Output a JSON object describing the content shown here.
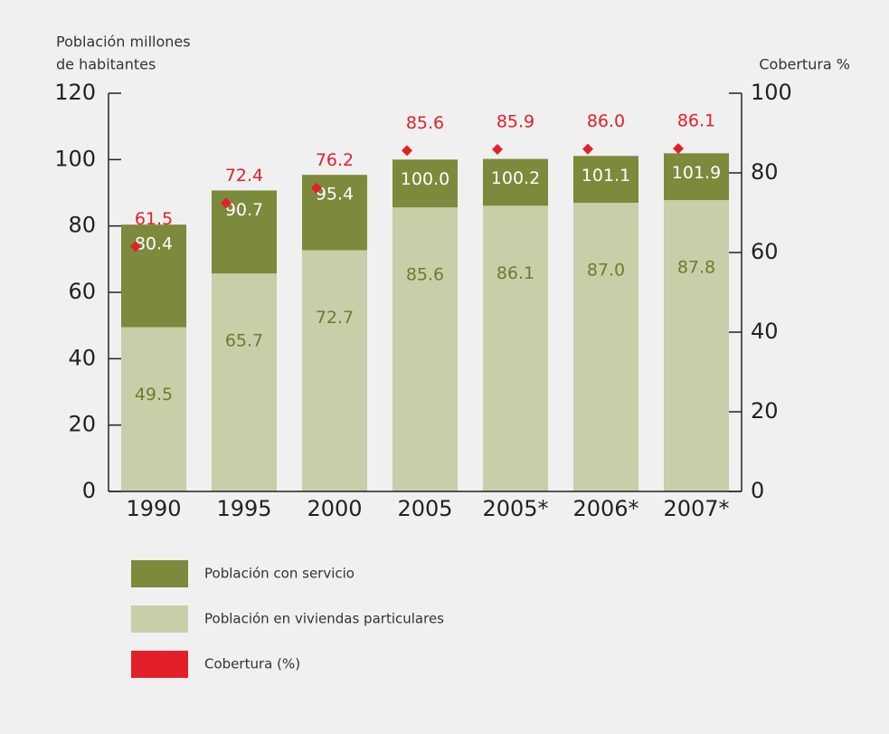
{
  "chart_data": {
    "type": "bar",
    "ylabel": [
      "Población millones",
      "de habitantes"
    ],
    "y2label": "Cobertura %",
    "categories": [
      "1990",
      "1995",
      "2000",
      "2005",
      "2005*",
      "2006*",
      "2007*"
    ],
    "series": [
      {
        "name": "Población con servicio",
        "color": "#7b8a3b",
        "values": [
          80.4,
          90.7,
          95.4,
          100.0,
          100.2,
          101.1,
          101.9
        ],
        "value_labels": [
          "80.4",
          "90.7",
          "95.4",
          "100.0",
          "100.2",
          "101.1",
          "101.9"
        ]
      },
      {
        "name": "Población en viviendas particulares",
        "color": "#c9cea9",
        "values": [
          49.5,
          65.7,
          72.7,
          85.6,
          86.1,
          87.0,
          87.8
        ],
        "value_labels": [
          "49.5",
          "65.7",
          "72.7",
          "85.6",
          "86.1",
          "87.0",
          "87.8"
        ]
      },
      {
        "name": "Cobertura (%)",
        "color": "#e3202a",
        "axis": "y2",
        "values": [
          61.5,
          72.4,
          76.2,
          85.6,
          85.9,
          86.0,
          86.1
        ],
        "value_labels": [
          "61.5",
          "72.4",
          "76.2",
          "85.6",
          "85.9",
          "86.0",
          "86.1"
        ]
      }
    ],
    "ylim": [
      0,
      120
    ],
    "yticks": [
      0,
      20,
      40,
      60,
      80,
      100,
      120
    ],
    "y2lim": [
      0,
      100
    ],
    "y2ticks": [
      0,
      20,
      40,
      60,
      80,
      100
    ],
    "grid": false
  }
}
